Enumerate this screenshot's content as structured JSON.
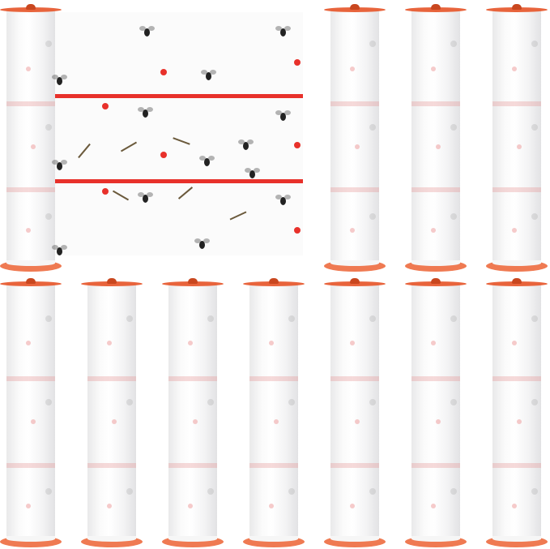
{
  "product": {
    "roll_count": 13,
    "colors": {
      "cap": "#e8643c",
      "stripe": "#e8312b",
      "film": "#fbfbfb",
      "insect": "#222222"
    },
    "unrolled_sheet": {
      "red_stripes": 2,
      "insects": "flies-and-mosquitoes"
    }
  }
}
